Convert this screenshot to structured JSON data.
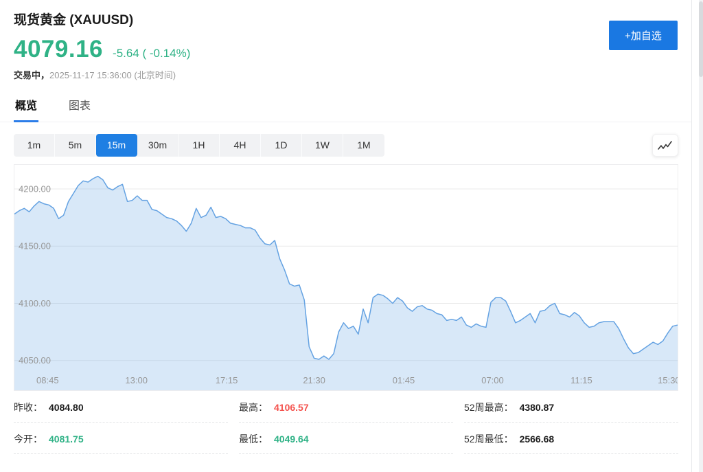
{
  "header": {
    "title": "现货黄金 (XAUUSD)",
    "price": "4079.16",
    "change": "-5.64 ( -0.14%)",
    "status": "交易中，",
    "timestamp": "2025-11-17 15:36:00 (北京时间)",
    "add_button": "+加自选"
  },
  "tabs": {
    "overview": "概览",
    "chart": "图表"
  },
  "ranges": {
    "items": [
      "1m",
      "5m",
      "15m",
      "30m",
      "1H",
      "4H",
      "1D",
      "1W",
      "1M"
    ],
    "active": "15m"
  },
  "stats": {
    "items": [
      {
        "label": "昨收：",
        "value": "4084.80",
        "color": "dark"
      },
      {
        "label": "最高：",
        "value": "4106.57",
        "color": "red"
      },
      {
        "label": "52周最高：",
        "value": "4380.87",
        "color": "dark"
      },
      {
        "label": "今开：",
        "value": "4081.75",
        "color": "green"
      },
      {
        "label": "最低：",
        "value": "4049.64",
        "color": "green"
      },
      {
        "label": "52周最低：",
        "value": "2566.68",
        "color": "dark"
      }
    ]
  },
  "colors": {
    "price_green": "#2fb286",
    "up_red": "#f4534e",
    "accent_blue": "#1f7fe3",
    "chart_line": "#64a2e2",
    "chart_fill": "rgba(100,162,226,0.25)",
    "grid": "#e9e9e9",
    "axis_text": "#979797"
  },
  "chart_data": {
    "type": "area",
    "symbol": "XAUUSD",
    "interval": "15m",
    "ylim": [
      4024,
      4221
    ],
    "grid": true,
    "y_ticks": [
      {
        "label": "4200.00",
        "value": 4200
      },
      {
        "label": "4150.00",
        "value": 4150
      },
      {
        "label": "4100.00",
        "value": 4100
      },
      {
        "label": "4050.00",
        "value": 4050
      }
    ],
    "x_ticks": [
      {
        "label": "08:45",
        "pos": 0.05
      },
      {
        "label": "13:00",
        "pos": 0.184
      },
      {
        "label": "17:15",
        "pos": 0.32
      },
      {
        "label": "21:30",
        "pos": 0.452
      },
      {
        "label": "01:45",
        "pos": 0.587
      },
      {
        "label": "07:00",
        "pos": 0.721
      },
      {
        "label": "11:15",
        "pos": 0.855
      },
      {
        "label": "15:30",
        "pos": 0.987
      }
    ],
    "values": [
      4178,
      4181,
      4183,
      4180,
      4185,
      4189,
      4187,
      4186,
      4183,
      4174,
      4177,
      4189,
      4196,
      4203,
      4207,
      4206,
      4209,
      4211,
      4208,
      4201,
      4199,
      4202,
      4204,
      4189,
      4190,
      4194,
      4190,
      4190,
      4182,
      4181,
      4178,
      4175,
      4174,
      4172,
      4168,
      4163,
      4170,
      4183,
      4175,
      4177,
      4184,
      4175,
      4176,
      4174,
      4170,
      4169,
      4168,
      4166,
      4166,
      4164,
      4157,
      4152,
      4151,
      4155,
      4139,
      4129,
      4117,
      4115,
      4116,
      4103,
      4062,
      4052,
      4051,
      4054,
      4051,
      4056,
      4075,
      4083,
      4078,
      4080,
      4073,
      4095,
      4083,
      4105,
      4108,
      4107,
      4104,
      4100,
      4105,
      4102,
      4096,
      4093,
      4097,
      4098,
      4095,
      4094,
      4091,
      4090,
      4085,
      4086,
      4085,
      4088,
      4081,
      4079,
      4082,
      4080,
      4079,
      4101,
      4105,
      4105,
      4102,
      4093,
      4083,
      4085,
      4088,
      4091,
      4083,
      4093,
      4094,
      4098,
      4100,
      4091,
      4090,
      4088,
      4092,
      4089,
      4083,
      4079,
      4080,
      4083,
      4084,
      4084,
      4084,
      4078,
      4069,
      4061,
      4056,
      4057,
      4060,
      4063,
      4066,
      4064,
      4067,
      4074,
      4080,
      4081
    ]
  }
}
